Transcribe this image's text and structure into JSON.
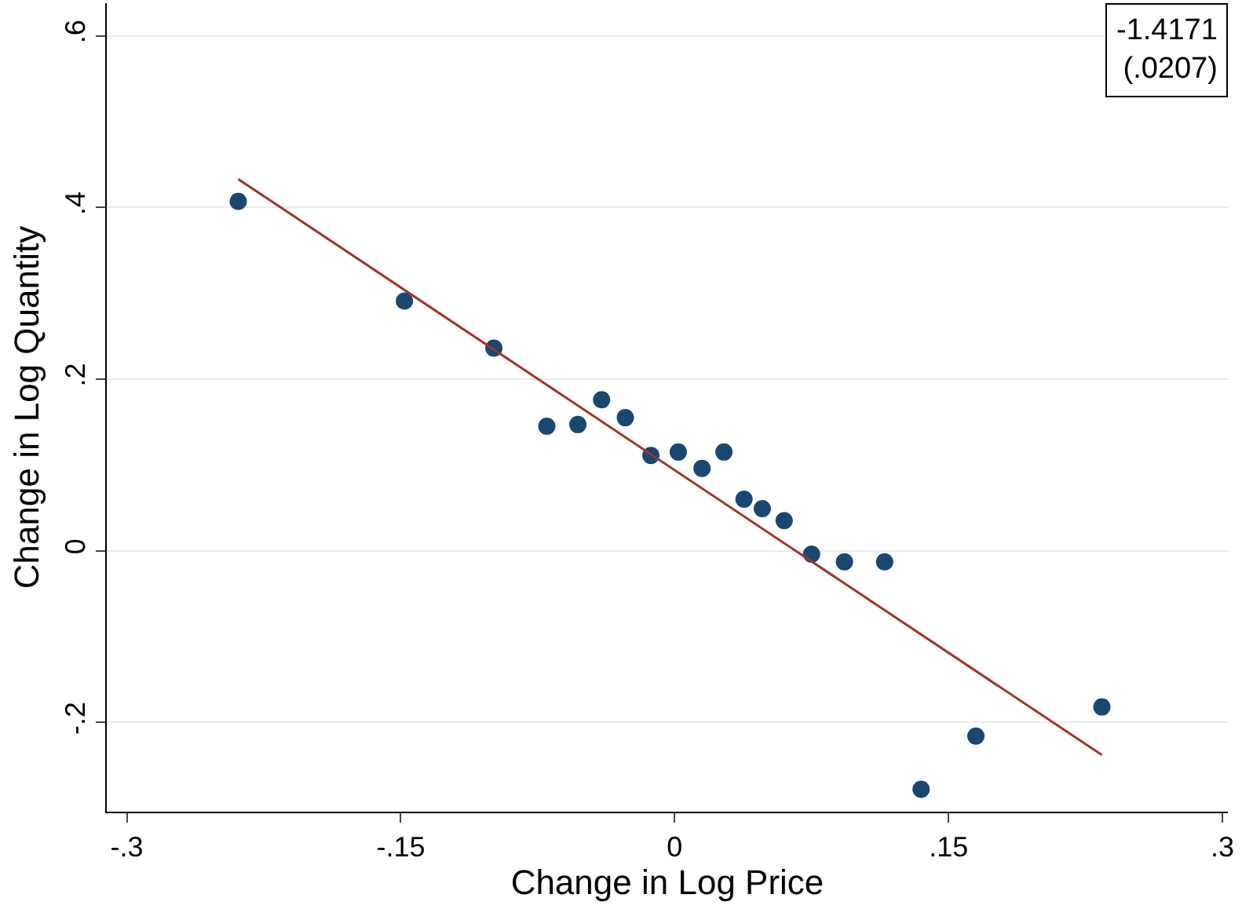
{
  "chart_data": {
    "type": "scatter",
    "xlabel": "Change in Log Price",
    "ylabel": "Change in Log Quantity",
    "annotations": [
      "-1.4171\n(.0207)"
    ],
    "xlim": [
      -0.311,
      0.303
    ],
    "ylim": [
      -0.304,
      0.638
    ],
    "xticks": [
      {
        "value": -0.3,
        "label": "-.3"
      },
      {
        "value": -0.15,
        "label": "-.15"
      },
      0,
      {
        "value": 0.15,
        "label": ".15"
      },
      {
        "value": 0.3,
        "label": ".3"
      }
    ],
    "yticks": [
      {
        "value": -0.2,
        "label": "-.2"
      },
      0,
      {
        "value": 0.2,
        "label": ".2"
      },
      {
        "value": 0.4,
        "label": ".4"
      },
      {
        "value": 0.6,
        "label": ".6"
      }
    ],
    "grid": "y",
    "marker": "circle",
    "x": [
      -0.239,
      -0.148,
      -0.099,
      -0.07,
      -0.053,
      -0.04,
      -0.027,
      -0.013,
      0.002,
      0.015,
      0.027,
      0.038,
      0.048,
      0.06,
      0.075,
      0.093,
      0.115,
      0.135,
      0.165,
      0.234
    ],
    "series": [
      {
        "type": "scatter",
        "color": "#1a476f",
        "values": [
          0.407,
          0.291,
          0.236,
          0.145,
          0.147,
          0.176,
          0.155,
          0.111,
          0.115,
          0.096,
          0.115,
          0.06,
          0.049,
          0.035,
          -0.004,
          -0.013,
          -0.013,
          -0.278,
          -0.216,
          -0.182
        ]
      },
      {
        "type": "line",
        "color": "#a0342d",
        "marker": "none",
        "line_style": "solid",
        "x": [
          -0.239,
          0.234
        ],
        "values": [
          0.433,
          -0.238
        ]
      }
    ]
  }
}
